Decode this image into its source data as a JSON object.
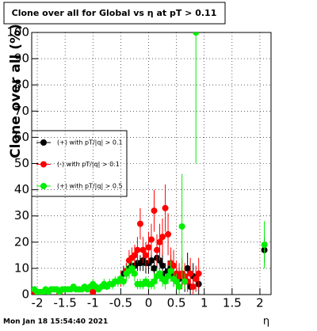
{
  "chart_data": {
    "type": "scatter",
    "title": "Clone  over all for Global vs  η at pT > 0.11",
    "y_label": "Clone  over all (%)",
    "x_label": "η",
    "timestamp": "Mon Jan 18 15:54:40 2021",
    "xlim": [
      -2.1,
      2.2
    ],
    "ylim": [
      0,
      100
    ],
    "xticks": [
      -2,
      -1.5,
      -1,
      -0.5,
      0,
      0.5,
      1,
      1.5,
      2
    ],
    "yticks": [
      0,
      10,
      20,
      30,
      40,
      50,
      60,
      70,
      80,
      90,
      100
    ],
    "grid": true,
    "series": [
      {
        "name": "(+) with pT/|q| > 0.1",
        "color": "#000000",
        "x": [
          -2.05,
          -1.0,
          -0.45,
          -0.4,
          -0.35,
          -0.3,
          -0.25,
          -0.2,
          -0.15,
          -0.1,
          -0.05,
          0,
          0.05,
          0.1,
          0.15,
          0.2,
          0.25,
          0.3,
          0.35,
          0.4,
          0.45,
          0.5,
          0.55,
          0.6,
          0.65,
          0.7,
          0.75,
          0.8,
          0.9,
          2.08
        ],
        "values": [
          1,
          1,
          8,
          9,
          10,
          11,
          11,
          12,
          12,
          13,
          12,
          12,
          13,
          10,
          14,
          13,
          11,
          8,
          9,
          10,
          7,
          6,
          6,
          8,
          5,
          10,
          3,
          7,
          4,
          17
        ],
        "errors": [
          1,
          1,
          3,
          3,
          3,
          3,
          3,
          3,
          3,
          4,
          4,
          4,
          4,
          4,
          5,
          5,
          5,
          4,
          4,
          5,
          4,
          4,
          4,
          5,
          4,
          6,
          3,
          5,
          4,
          5
        ]
      },
      {
        "name": "(-) with pT/|q| > 0.1",
        "color": "#ff0000",
        "x": [
          -2.05,
          -1.6,
          -1.0,
          -0.5,
          -0.4,
          -0.35,
          -0.3,
          -0.25,
          -0.2,
          -0.15,
          -0.1,
          -0.05,
          0,
          0.05,
          0.1,
          0.15,
          0.2,
          0.25,
          0.3,
          0.35,
          0.4,
          0.45,
          0.5,
          0.55,
          0.6,
          0.65,
          0.7,
          0.75,
          0.8,
          0.85,
          0.9
        ],
        "values": [
          1,
          0.5,
          1,
          6,
          9,
          13,
          14,
          15,
          17,
          27,
          17,
          15,
          18,
          21,
          32,
          17,
          20,
          22,
          33,
          23,
          12,
          11,
          8,
          7,
          8,
          7,
          5,
          8,
          3,
          6,
          8
        ],
        "errors": [
          1,
          0.5,
          1,
          3,
          3,
          4,
          4,
          4,
          5,
          6,
          5,
          5,
          6,
          6,
          8,
          6,
          7,
          7,
          9,
          8,
          6,
          6,
          5,
          5,
          6,
          5,
          4,
          6,
          3,
          5,
          6
        ]
      },
      {
        "name": "(+) with pT/|q| > 0.5",
        "color": "#00ee00",
        "x": [
          -2.05,
          -2.0,
          -1.95,
          -1.9,
          -1.85,
          -1.8,
          -1.75,
          -1.7,
          -1.65,
          -1.6,
          -1.55,
          -1.5,
          -1.45,
          -1.4,
          -1.35,
          -1.3,
          -1.25,
          -1.2,
          -1.15,
          -1.1,
          -1.05,
          -1.0,
          -0.95,
          -0.9,
          -0.85,
          -0.8,
          -0.75,
          -0.7,
          -0.65,
          -0.6,
          -0.55,
          -0.5,
          -0.45,
          -0.4,
          -0.35,
          -0.3,
          -0.25,
          -0.2,
          -0.15,
          -0.1,
          -0.05,
          0,
          0.05,
          0.1,
          0.15,
          0.2,
          0.25,
          0.3,
          0.35,
          0.4,
          0.45,
          0.5,
          0.55,
          0.6,
          0.65,
          0.85,
          2.08
        ],
        "values": [
          2,
          1,
          1,
          1,
          2,
          1,
          2,
          2,
          2,
          1,
          2,
          2,
          2,
          2,
          3,
          2,
          2,
          2,
          3,
          2,
          3,
          4,
          3,
          2,
          3,
          4,
          3,
          4,
          4,
          5,
          5,
          6,
          5,
          8,
          9,
          10,
          8,
          4,
          4,
          4,
          5,
          4,
          4,
          5,
          7,
          8,
          6,
          5,
          7,
          9,
          6,
          5,
          3,
          26,
          5,
          100,
          19
        ],
        "errors": [
          1,
          1,
          1,
          1,
          1,
          1,
          1,
          1,
          1,
          1,
          1,
          1,
          1,
          1,
          1,
          1,
          1,
          1,
          1,
          1,
          1,
          2,
          1,
          1,
          1,
          2,
          1,
          2,
          2,
          2,
          2,
          2,
          2,
          3,
          3,
          3,
          3,
          2,
          2,
          2,
          2,
          2,
          2,
          3,
          3,
          3,
          3,
          3,
          3,
          4,
          3,
          3,
          3,
          20,
          3,
          50,
          9
        ]
      }
    ]
  }
}
